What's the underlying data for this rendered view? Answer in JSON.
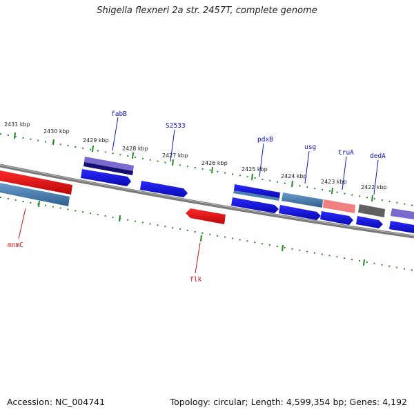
{
  "title": "Shigella flexneri 2a str. 2457T, complete genome",
  "footer": {
    "accession": "Accession: NC_004741",
    "summary": "Topology: circular; Length: 4,599,354 bp; Genes: 4,192"
  },
  "ticks": [
    "2431 kbp",
    "2430 kbp",
    "2429 kbp",
    "2428 kbp",
    "2427 kbp",
    "2426 kbp",
    "2425 kbp",
    "2424 kbp",
    "2423 kbp",
    "2422 kbp"
  ],
  "gene_labels_top": [
    "fabB",
    "S2533",
    "pdxB",
    "usg",
    "truA",
    "dedA"
  ],
  "gene_labels_bottom": [
    "mnmC",
    "flk"
  ],
  "colors": {
    "forward": "#1010e8",
    "reverse": "#e81010",
    "steel": "#4a7fb0",
    "purple": "#7a6ad0",
    "navy": "#141070",
    "pink": "#f08080",
    "grey": "#606060",
    "backbone": "#7a7a7a",
    "tick": "#228822"
  }
}
